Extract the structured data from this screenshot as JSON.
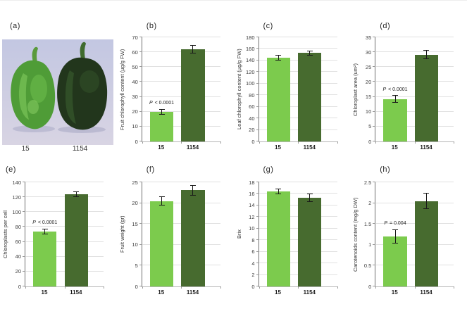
{
  "colors": {
    "bar_light": "#7ccb4d",
    "bar_dark": "#476b2f",
    "photo_bg_top": "#c3c7e2",
    "photo_bg_bottom": "#d8d4e3"
  },
  "panel_a": {
    "label": "(a)",
    "description": "photo of two pepper fruits",
    "captions": [
      "15",
      "1154"
    ]
  },
  "chart_data": [
    {
      "type": "bar",
      "panel": "(b)",
      "ylabel": "Fruit chlorophyll content (µg/g FW)",
      "categories": [
        "15",
        "1154"
      ],
      "values": [
        20,
        62
      ],
      "errors": [
        2,
        3
      ],
      "ylim": [
        0,
        70
      ],
      "ytick_step": 10,
      "annotation": "P < 0.0001"
    },
    {
      "type": "bar",
      "panel": "(c)",
      "ylabel": "Leaf chlorophyll content (µg/g FW)",
      "categories": [
        "15",
        "1154"
      ],
      "values": [
        145,
        153
      ],
      "errors": [
        5,
        4
      ],
      "ylim": [
        0,
        180
      ],
      "ytick_step": 20,
      "annotation": null
    },
    {
      "type": "bar",
      "panel": "(d)",
      "ylabel": "Chloroplast area (um²)",
      "categories": [
        "15",
        "1154"
      ],
      "values": [
        14.3,
        29.2
      ],
      "errors": [
        1.2,
        1.6
      ],
      "ylim": [
        0,
        35
      ],
      "ytick_step": 5,
      "annotation": "P < 0.0001"
    },
    {
      "type": "bar",
      "panel": "(e)",
      "ylabel": "Chloroplasts per cell",
      "categories": [
        "15",
        "1154"
      ],
      "values": [
        74,
        124
      ],
      "errors": [
        4,
        4
      ],
      "ylim": [
        0,
        140
      ],
      "ytick_step": 20,
      "annotation": "P < 0.0001"
    },
    {
      "type": "bar",
      "panel": "(f)",
      "ylabel": "Fruit weight (gr)",
      "categories": [
        "15",
        "1154"
      ],
      "values": [
        20.5,
        23.1
      ],
      "errors": [
        1.1,
        1.3
      ],
      "ylim": [
        0,
        25
      ],
      "ytick_step": 5,
      "annotation": null
    },
    {
      "type": "bar",
      "panel": "(g)",
      "ylabel": "Brix",
      "categories": [
        "15",
        "1154"
      ],
      "values": [
        16.4,
        15.3
      ],
      "errors": [
        0.5,
        0.7
      ],
      "ylim": [
        0,
        18
      ],
      "ytick_step": 2,
      "annotation": null
    },
    {
      "type": "bar",
      "panel": "(h)",
      "ylabel": "Carotenoids content (mg/g DW)",
      "categories": [
        "15",
        "1154"
      ],
      "values": [
        1.2,
        2.05
      ],
      "errors": [
        0.17,
        0.2
      ],
      "ylim": [
        0,
        2.5
      ],
      "ytick_step": 0.5,
      "annotation": "P = 0.004"
    }
  ]
}
